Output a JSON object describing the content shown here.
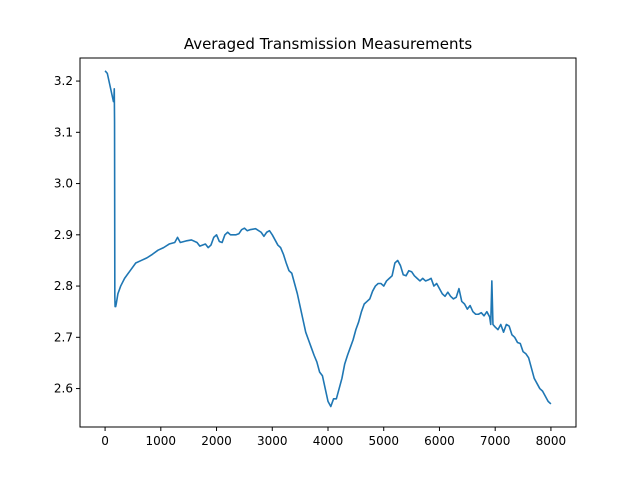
{
  "chart_data": {
    "type": "line",
    "title": "Averaged Transmission Measurements",
    "xlabel": "",
    "ylabel": "",
    "xlim": [
      -450,
      8450
    ],
    "ylim": [
      2.525,
      3.245
    ],
    "xticks": [
      0,
      1000,
      2000,
      3000,
      4000,
      5000,
      6000,
      7000,
      8000
    ],
    "yticks": [
      2.6,
      2.7,
      2.8,
      2.9,
      3.0,
      3.1,
      3.2
    ],
    "xtick_labels": [
      "0",
      "1000",
      "2000",
      "3000",
      "4000",
      "5000",
      "6000",
      "7000",
      "8000"
    ],
    "ytick_labels": [
      "2.6",
      "2.7",
      "2.8",
      "2.9",
      "3.0",
      "3.1",
      "3.2"
    ],
    "grid": false,
    "line_color": "#1f77b4",
    "series": [
      {
        "x": [
          0,
          40,
          80,
          120,
          140,
          150,
          160,
          165,
          170,
          175,
          180,
          185,
          190,
          200,
          230,
          280,
          350,
          450,
          550,
          650,
          750,
          850,
          950,
          1050,
          1150,
          1250,
          1300,
          1350,
          1450,
          1550,
          1650,
          1700,
          1800,
          1850,
          1900,
          1950,
          2000,
          2050,
          2100,
          2150,
          2200,
          2250,
          2300,
          2350,
          2400,
          2450,
          2500,
          2550,
          2600,
          2700,
          2800,
          2850,
          2900,
          2950,
          3000,
          3050,
          3100,
          3150,
          3200,
          3250,
          3300,
          3350,
          3400,
          3450,
          3500,
          3550,
          3600,
          3650,
          3700,
          3750,
          3800,
          3850,
          3900,
          3950,
          4000,
          4050,
          4100,
          4150,
          4200,
          4250,
          4300,
          4350,
          4400,
          4450,
          4500,
          4550,
          4600,
          4650,
          4700,
          4750,
          4800,
          4850,
          4900,
          4950,
          5000,
          5050,
          5100,
          5150,
          5200,
          5250,
          5300,
          5350,
          5400,
          5450,
          5500,
          5550,
          5600,
          5650,
          5700,
          5750,
          5800,
          5850,
          5900,
          5950,
          6000,
          6050,
          6100,
          6150,
          6200,
          6250,
          6300,
          6350,
          6400,
          6450,
          6500,
          6550,
          6600,
          6650,
          6700,
          6750,
          6800,
          6850,
          6900,
          6920,
          6940,
          6960,
          7000,
          7050,
          7100,
          7150,
          7200,
          7250,
          7300,
          7350,
          7400,
          7450,
          7500,
          7550,
          7600,
          7650,
          7700,
          7750,
          7800,
          7850,
          7900,
          7950,
          8000
        ],
        "values": [
          3.22,
          3.215,
          3.195,
          3.175,
          3.165,
          3.16,
          3.17,
          3.185,
          3.12,
          2.78,
          2.76,
          2.765,
          2.76,
          2.765,
          2.785,
          2.8,
          2.815,
          2.83,
          2.845,
          2.85,
          2.855,
          2.862,
          2.87,
          2.875,
          2.882,
          2.885,
          2.895,
          2.885,
          2.888,
          2.89,
          2.885,
          2.878,
          2.882,
          2.875,
          2.88,
          2.895,
          2.9,
          2.887,
          2.885,
          2.9,
          2.905,
          2.9,
          2.9,
          2.9,
          2.902,
          2.91,
          2.913,
          2.908,
          2.91,
          2.912,
          2.905,
          2.897,
          2.905,
          2.908,
          2.9,
          2.89,
          2.88,
          2.875,
          2.862,
          2.845,
          2.83,
          2.825,
          2.805,
          2.785,
          2.76,
          2.735,
          2.71,
          2.695,
          2.68,
          2.665,
          2.652,
          2.632,
          2.625,
          2.6,
          2.575,
          2.565,
          2.58,
          2.58,
          2.6,
          2.62,
          2.648,
          2.665,
          2.68,
          2.695,
          2.715,
          2.73,
          2.75,
          2.765,
          2.77,
          2.775,
          2.79,
          2.8,
          2.805,
          2.805,
          2.8,
          2.81,
          2.815,
          2.82,
          2.845,
          2.85,
          2.84,
          2.822,
          2.82,
          2.83,
          2.828,
          2.82,
          2.815,
          2.81,
          2.815,
          2.81,
          2.812,
          2.815,
          2.8,
          2.805,
          2.795,
          2.785,
          2.78,
          2.788,
          2.78,
          2.775,
          2.778,
          2.795,
          2.77,
          2.765,
          2.755,
          2.762,
          2.75,
          2.745,
          2.745,
          2.748,
          2.742,
          2.75,
          2.74,
          2.725,
          2.81,
          2.725,
          2.72,
          2.715,
          2.725,
          2.71,
          2.725,
          2.722,
          2.705,
          2.7,
          2.69,
          2.688,
          2.672,
          2.668,
          2.66,
          2.64,
          2.62,
          2.61,
          2.6,
          2.595,
          2.585,
          2.575,
          2.57
        ]
      }
    ]
  }
}
